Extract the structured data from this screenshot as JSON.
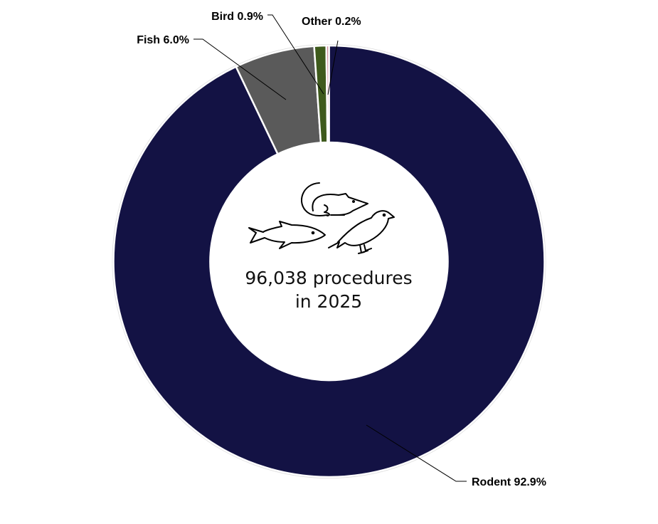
{
  "chart_data": {
    "type": "pie",
    "donut": true,
    "categories": [
      "Rodent",
      "Fish",
      "Bird",
      "Other"
    ],
    "values": [
      92.9,
      6.0,
      0.9,
      0.2
    ],
    "labels": [
      "Rodent 92.9%",
      "Fish 6.0%",
      "Bird 0.9%",
      "Other 0.2%"
    ],
    "colors": [
      "#131244",
      "#5a5a5a",
      "#3e5a1c",
      "#c98595"
    ],
    "center_text": [
      "96,038 procedures",
      "in 2025"
    ],
    "center_icons": [
      "rat-icon",
      "fish-icon",
      "bird-icon"
    ],
    "legend": "none"
  }
}
